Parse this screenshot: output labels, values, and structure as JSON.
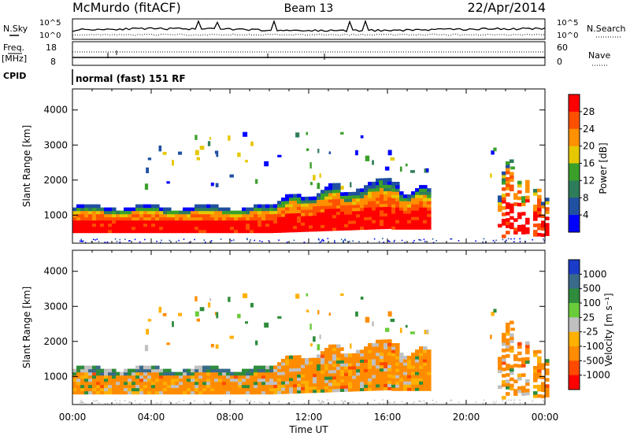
{
  "header": {
    "station": "McMurdo (fitACF)",
    "beam": "Beam 13",
    "date": "22/Apr/2014"
  },
  "noise_panel": {
    "left_label": "N.Sky",
    "right_label": "N.Search",
    "left_ticks": [
      "10^5",
      "10^0"
    ],
    "right_ticks": [
      "10^5",
      "10^0"
    ]
  },
  "freq_panel": {
    "left_label_top": "Freq.",
    "left_label_bottom": "[MHz]",
    "right_label": "Nave",
    "left_ticks": [
      "18",
      "8"
    ],
    "right_ticks": [
      "60",
      "0"
    ]
  },
  "cpid_panel": {
    "label": "CPID",
    "text": "normal (fast) 151 RF"
  },
  "chart_data": [
    {
      "type": "heatmap",
      "name": "power",
      "ylabel": "Slant Range [km]",
      "ylim": [
        200,
        4600
      ],
      "yticks": [
        1000,
        2000,
        3000,
        4000
      ],
      "xlim": [
        0,
        24
      ],
      "colorbar": {
        "label": "Power [dB]",
        "ticks": [
          "28",
          "24",
          "20",
          "16",
          "12",
          "8",
          "4"
        ],
        "colors": [
          "#ff0000",
          "#ff5000",
          "#ff9000",
          "#e6c800",
          "#3aa02a",
          "#2e7d5a",
          "#2050a0",
          "#0000ff"
        ]
      }
    },
    {
      "type": "heatmap",
      "name": "velocity",
      "ylabel": "Slant Range [km]",
      "ylim": [
        200,
        4600
      ],
      "yticks": [
        1000,
        2000,
        3000,
        4000
      ],
      "xlim": [
        0,
        24
      ],
      "xticks": [
        "00:00",
        "04:00",
        "08:00",
        "12:00",
        "16:00",
        "20:00",
        "00:00"
      ],
      "xlabel": "Time UT",
      "colorbar": {
        "label": "Velocity [m s⁻¹]",
        "ticks": [
          "1000",
          "500",
          "100",
          "25",
          "-25",
          "-100",
          "-500",
          "-1000"
        ],
        "colors": [
          "#1a3cc8",
          "#3a6a8a",
          "#2e8c3c",
          "#6acc3a",
          "#c0c0c0",
          "#ffb000",
          "#ff8c00",
          "#ff4a00",
          "#ff0000"
        ]
      }
    }
  ]
}
